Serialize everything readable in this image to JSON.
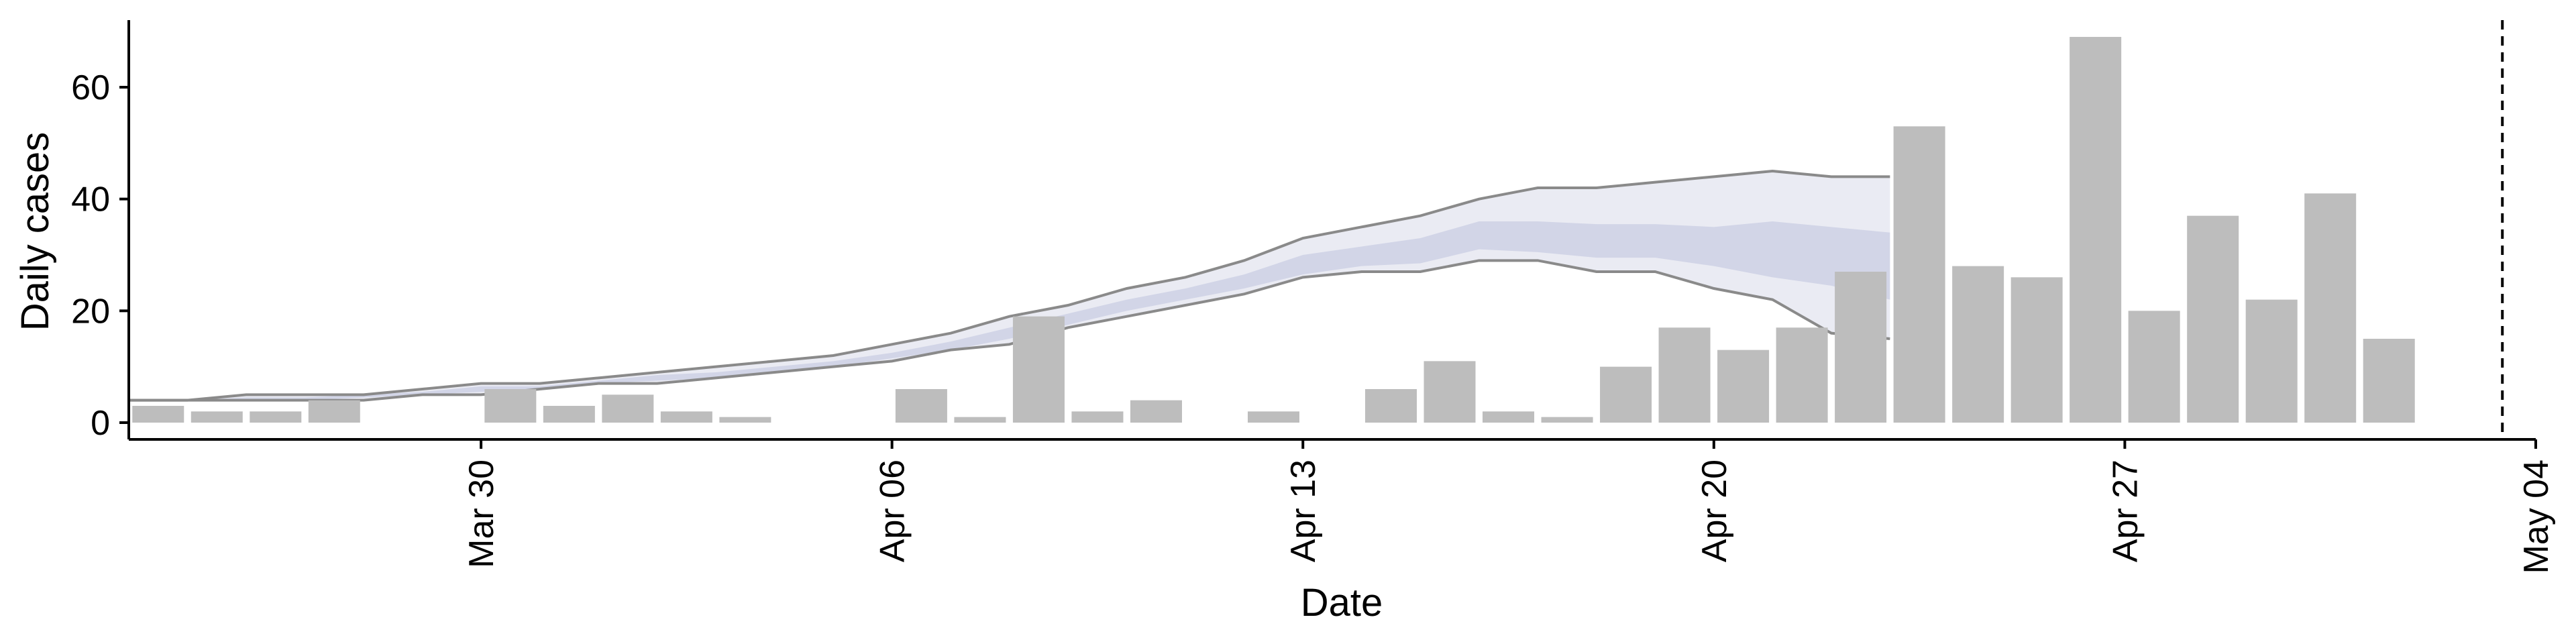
{
  "chart_data": {
    "type": "bar",
    "title": "",
    "xlabel": "Date",
    "ylabel": "Daily cases",
    "xlim": [
      "2020-03-24",
      "2020-05-04"
    ],
    "ylim": [
      -3,
      72
    ],
    "grid": false,
    "legend": "none",
    "x_ticks": [
      {
        "date": "2020-03-30",
        "label": "Mar 30"
      },
      {
        "date": "2020-04-06",
        "label": "Apr 06"
      },
      {
        "date": "2020-04-13",
        "label": "Apr 13"
      },
      {
        "date": "2020-04-20",
        "label": "Apr 20"
      },
      {
        "date": "2020-04-27",
        "label": "Apr 27"
      },
      {
        "date": "2020-05-04",
        "label": "May 04"
      }
    ],
    "y_ticks": [
      0,
      20,
      40,
      60
    ],
    "bars": {
      "color": "#bdbdbd",
      "dates": [
        "2020-03-24",
        "2020-03-25",
        "2020-03-26",
        "2020-03-27",
        "2020-03-28",
        "2020-03-29",
        "2020-03-30",
        "2020-03-31",
        "2020-04-01",
        "2020-04-02",
        "2020-04-03",
        "2020-04-04",
        "2020-04-05",
        "2020-04-06",
        "2020-04-07",
        "2020-04-08",
        "2020-04-09",
        "2020-04-10",
        "2020-04-11",
        "2020-04-12",
        "2020-04-13",
        "2020-04-14",
        "2020-04-15",
        "2020-04-16",
        "2020-04-17",
        "2020-04-18",
        "2020-04-19",
        "2020-04-20",
        "2020-04-21",
        "2020-04-22",
        "2020-04-23",
        "2020-04-24",
        "2020-04-25",
        "2020-04-26",
        "2020-04-27",
        "2020-04-28",
        "2020-04-29",
        "2020-04-30",
        "2020-05-01",
        "2020-05-02"
      ],
      "values": [
        3,
        2,
        2,
        4,
        0,
        0,
        6,
        3,
        5,
        2,
        1,
        0,
        0,
        6,
        1,
        19,
        2,
        4,
        0,
        2,
        0,
        6,
        11,
        2,
        1,
        10,
        17,
        13,
        17,
        27,
        53,
        28,
        26,
        69,
        20,
        37,
        22,
        41,
        15,
        0
      ]
    },
    "band": {
      "outer_color": "#9ea6c8",
      "inner_color": "#aab2d4",
      "line_color": "#8a8a8a",
      "dates": [
        "2020-03-24",
        "2020-03-25",
        "2020-03-26",
        "2020-03-27",
        "2020-03-28",
        "2020-03-29",
        "2020-03-30",
        "2020-03-31",
        "2020-04-01",
        "2020-04-02",
        "2020-04-03",
        "2020-04-04",
        "2020-04-05",
        "2020-04-06",
        "2020-04-07",
        "2020-04-08",
        "2020-04-09",
        "2020-04-10",
        "2020-04-11",
        "2020-04-12",
        "2020-04-13",
        "2020-04-14",
        "2020-04-15",
        "2020-04-16",
        "2020-04-17",
        "2020-04-18",
        "2020-04-19",
        "2020-04-20",
        "2020-04-21",
        "2020-04-22",
        "2020-04-23"
      ],
      "upper": [
        4,
        4,
        5,
        5,
        5,
        6,
        7,
        7,
        8,
        9,
        10,
        11,
        12,
        14,
        16,
        19,
        21,
        24,
        26,
        29,
        33,
        35,
        37,
        40,
        42,
        42,
        43,
        44,
        45,
        44,
        44
      ],
      "upper_inner": [
        4,
        4,
        4.5,
        4.5,
        5,
        5.5,
        6.5,
        6.5,
        7.5,
        8.5,
        9,
        10,
        11,
        12.5,
        14.5,
        17,
        19.5,
        22,
        24,
        26.5,
        30,
        31.5,
        33,
        36,
        36,
        35.5,
        35.5,
        35,
        36,
        35,
        34
      ],
      "median": [
        4,
        4,
        4,
        4,
        5,
        5,
        6,
        6,
        7,
        8,
        8.5,
        9.5,
        10.5,
        12,
        14,
        16,
        18.5,
        21,
        23,
        25,
        28,
        29.5,
        31,
        34,
        33.5,
        33,
        33,
        32,
        31,
        30,
        29
      ],
      "lower_inner": [
        4,
        4,
        4,
        4,
        4.5,
        5,
        5.5,
        6,
        7,
        7.5,
        8,
        9,
        10,
        11.5,
        13,
        15,
        17.5,
        20,
        22,
        24,
        26.5,
        28,
        28.5,
        31,
        30.5,
        29.5,
        29.5,
        28,
        26,
        24.5,
        22
      ],
      "lower": [
        4,
        4,
        4,
        4,
        4,
        5,
        5,
        6,
        7,
        7,
        8,
        9,
        10,
        11,
        13,
        14,
        17,
        19,
        21,
        23,
        26,
        27,
        27,
        29,
        29,
        27,
        27,
        24,
        22,
        16,
        15
      ]
    },
    "vline": {
      "date": "2020-05-03",
      "style": "dashed",
      "color": "#000000"
    }
  }
}
